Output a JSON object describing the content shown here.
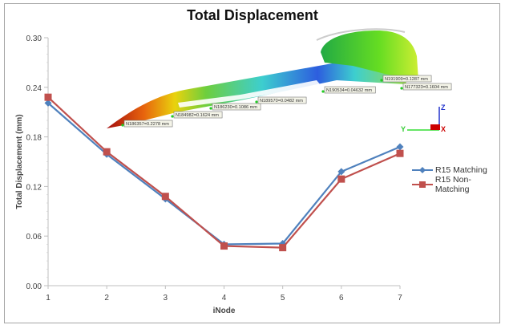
{
  "chart_data": {
    "type": "line",
    "title": "Total Displacement",
    "xlabel": "iNode",
    "ylabel": "Total Displacement (mm)",
    "x": [
      1,
      2,
      3,
      4,
      5,
      6,
      7
    ],
    "ylim": [
      0.0,
      0.3
    ],
    "yticks": [
      "0.00",
      "0.06",
      "0.12",
      "0.18",
      "0.24",
      "0.30"
    ],
    "xticks": [
      "1",
      "2",
      "3",
      "4",
      "5",
      "6",
      "7"
    ],
    "grid": false,
    "legend_position": "right",
    "series": [
      {
        "name": "R15 Matching",
        "marker": "diamond",
        "color": "#4f81bd",
        "values": [
          0.221,
          0.159,
          0.105,
          0.05,
          0.051,
          0.138,
          0.168
        ]
      },
      {
        "name": "R15 Non-Matching",
        "marker": "square",
        "color": "#c0504d",
        "values": [
          0.228,
          0.162,
          0.108,
          0.048,
          0.046,
          0.129,
          0.16
        ]
      }
    ],
    "annotations": [
      "N186357=0.2278 mm",
      "N184982=0.1624 mm",
      "N186230=0.1086 mm",
      "N189570=0.0482 mm",
      "N190534=0.04632 mm",
      "N191909=0.1287 mm",
      "N177323=0.1604 mm"
    ]
  },
  "inset": {
    "axis_labels": {
      "x": "X",
      "y": "Y",
      "z": "Z"
    }
  }
}
